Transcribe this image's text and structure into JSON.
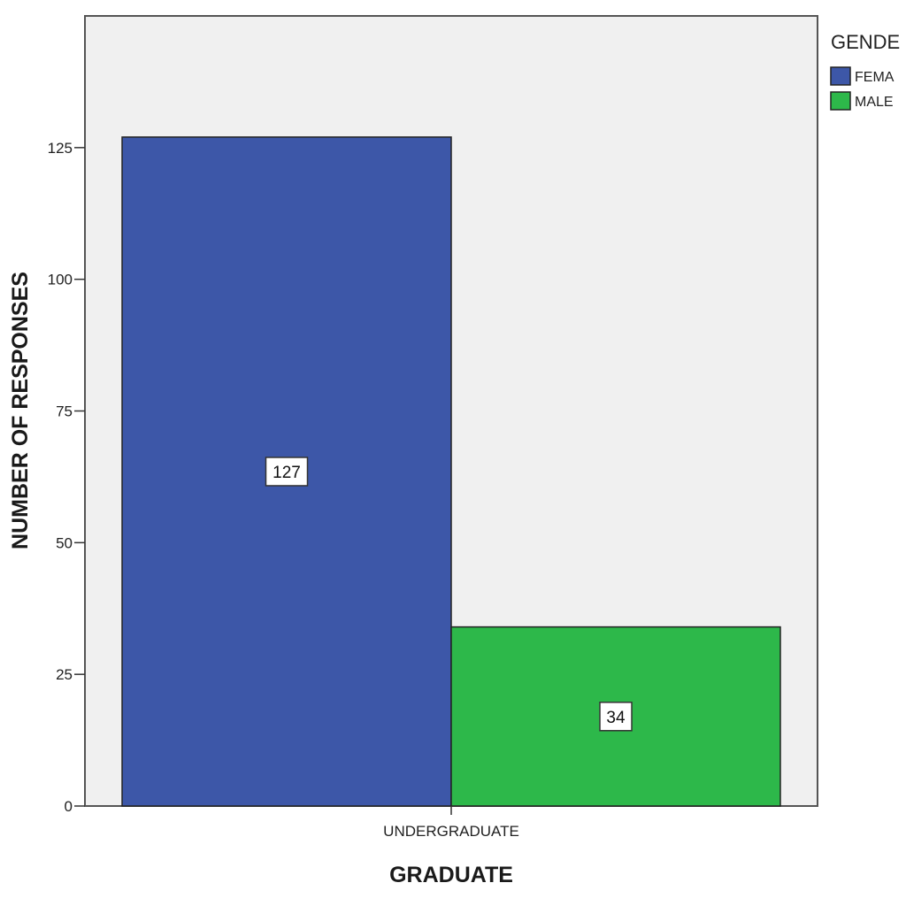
{
  "chart_data": {
    "type": "bar",
    "categories": [
      "UNDERGRADUATE"
    ],
    "series": [
      {
        "name": "FEMA",
        "values": [
          127
        ],
        "color": "#3d57a8"
      },
      {
        "name": "MALE",
        "values": [
          34
        ],
        "color": "#2db84a"
      }
    ],
    "data_labels": [
      "127",
      "34"
    ],
    "xlabel": "GRADUATE",
    "ylabel": "NUMBER OF RESPONSES",
    "ylim": [
      0,
      150
    ],
    "yticks": [
      0,
      25,
      50,
      75,
      100,
      125
    ],
    "legend": {
      "title": "GENDE",
      "placement": "right"
    },
    "grid": false,
    "plot_background": "#f0f0f0"
  }
}
